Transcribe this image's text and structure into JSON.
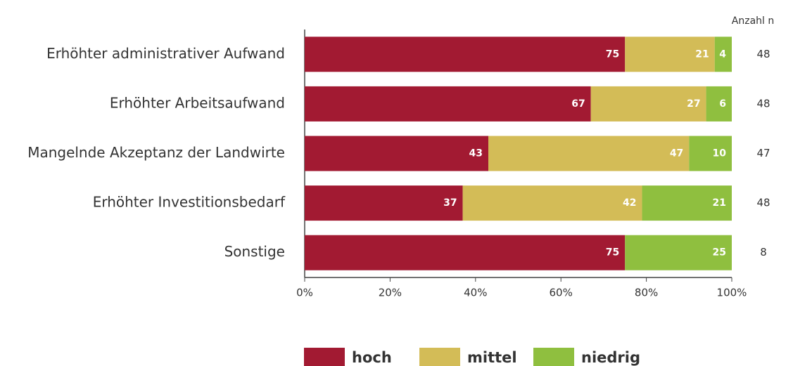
{
  "chart_data": {
    "type": "stacked-bar-horizontal",
    "categories": [
      "Erhöhter administrativer Aufwand",
      "Erhöhter Arbeitsaufwand",
      "Mangelnde Akzeptanz der Landwirte",
      "Erhöhter Investitionsbedarf",
      "Sonstige"
    ],
    "series": [
      {
        "name": "hoch",
        "color": "#a21a32",
        "values": [
          75,
          67,
          43,
          37,
          75
        ]
      },
      {
        "name": "mittel",
        "color": "#d3bc57",
        "values": [
          21,
          27,
          47,
          42,
          0
        ]
      },
      {
        "name": "niedrig",
        "color": "#8fbf3f",
        "values": [
          4,
          6,
          10,
          21,
          25
        ]
      }
    ],
    "xlim": [
      0,
      100
    ],
    "xticks": [
      {
        "value": 0,
        "label": "0%"
      },
      {
        "value": 20,
        "label": "20%"
      },
      {
        "value": 40,
        "label": "40%"
      },
      {
        "value": 60,
        "label": "60%"
      },
      {
        "value": 80,
        "label": "80%"
      },
      {
        "value": 100,
        "label": "100%"
      }
    ],
    "n_label": "Anzahl n",
    "n": [
      48,
      48,
      47,
      48,
      8
    ]
  }
}
